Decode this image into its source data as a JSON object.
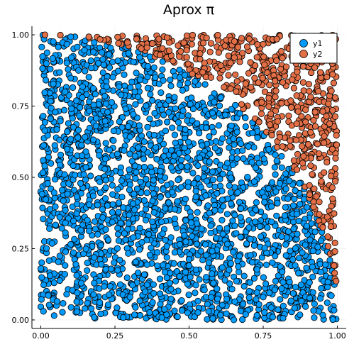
{
  "chart_data": {
    "type": "scatter",
    "title": "Aprox π",
    "xlabel": "",
    "ylabel": "",
    "xlim": [
      -0.03,
      1.03
    ],
    "ylim": [
      -0.03,
      1.03
    ],
    "xticks": [
      0.0,
      0.25,
      0.5,
      0.75,
      1.0
    ],
    "xtick_labels": [
      "0.00",
      "0.25",
      "0.50",
      "0.75",
      "1.00"
    ],
    "yticks": [
      0.0,
      0.25,
      0.5,
      0.75,
      1.0
    ],
    "ytick_labels": [
      "0.00",
      "0.25",
      "0.50",
      "0.75",
      "1.00"
    ],
    "grid": true,
    "legend_position": "top-right",
    "series": [
      {
        "name": "y1",
        "color": "#009AFA",
        "rule": "points inside the unit quarter circle: x^2 + y^2 <= 1",
        "points": []
      },
      {
        "name": "y2",
        "color": "#E26F46",
        "rule": "points outside the unit quarter circle: x^2 + y^2 > 1",
        "points": []
      }
    ],
    "total_points": 3000,
    "x_range": [
      0,
      1
    ],
    "y_range": [
      0,
      1
    ]
  }
}
